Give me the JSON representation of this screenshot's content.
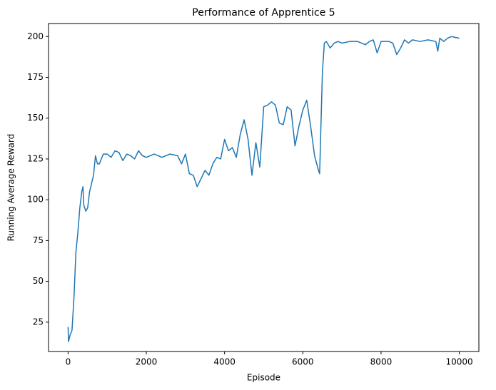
{
  "chart_data": {
    "type": "line",
    "title": "Performance of Apprentice 5",
    "x_label": "Episode",
    "y_label": "Running Average Reward",
    "x": [
      0,
      10,
      50,
      100,
      150,
      200,
      250,
      300,
      350,
      380,
      400,
      450,
      500,
      550,
      600,
      650,
      700,
      750,
      800,
      900,
      1000,
      1100,
      1200,
      1300,
      1400,
      1500,
      1600,
      1700,
      1800,
      1900,
      2000,
      2200,
      2400,
      2600,
      2800,
      2900,
      3000,
      3100,
      3200,
      3300,
      3400,
      3500,
      3600,
      3700,
      3800,
      3900,
      4000,
      4100,
      4200,
      4300,
      4400,
      4500,
      4600,
      4700,
      4800,
      4900,
      5000,
      5100,
      5200,
      5300,
      5400,
      5500,
      5600,
      5700,
      5800,
      5900,
      6000,
      6100,
      6200,
      6300,
      6400,
      6430,
      6500,
      6550,
      6600,
      6700,
      6800,
      6900,
      7000,
      7200,
      7400,
      7600,
      7700,
      7800,
      7900,
      8000,
      8100,
      8200,
      8300,
      8400,
      8500,
      8600,
      8700,
      8800,
      9000,
      9200,
      9400,
      9450,
      9500,
      9600,
      9700,
      9800,
      10000
    ],
    "series": [
      {
        "name": "Running Average Reward",
        "color": "#1f77b4",
        "values": [
          22,
          13,
          17,
          20,
          40,
          68,
          80,
          95,
          105,
          108,
          97,
          93,
          95,
          105,
          110,
          115,
          127,
          122,
          122,
          128,
          128,
          126,
          130,
          129,
          124,
          128,
          127,
          125,
          130,
          127,
          126,
          128,
          126,
          128,
          127,
          122,
          128,
          116,
          115,
          108,
          113,
          118,
          115,
          122,
          126,
          125,
          137,
          130,
          132,
          126,
          140,
          149,
          137,
          115,
          135,
          120,
          157,
          158,
          160,
          158,
          147,
          146,
          157,
          155,
          133,
          145,
          155,
          161,
          145,
          127,
          118,
          116,
          178,
          196,
          197,
          193,
          196,
          197,
          196,
          197,
          197,
          195,
          197,
          198,
          190,
          197,
          197,
          197,
          196,
          189,
          193,
          198,
          196,
          198,
          197,
          198,
          197,
          191,
          199,
          197,
          199,
          200,
          199
        ]
      }
    ],
    "xlim": [
      -500,
      10500
    ],
    "ylim": [
      7,
      208
    ],
    "xticks": [
      0,
      2000,
      4000,
      6000,
      8000,
      10000
    ],
    "yticks": [
      25,
      50,
      75,
      100,
      125,
      150,
      175,
      200
    ]
  }
}
